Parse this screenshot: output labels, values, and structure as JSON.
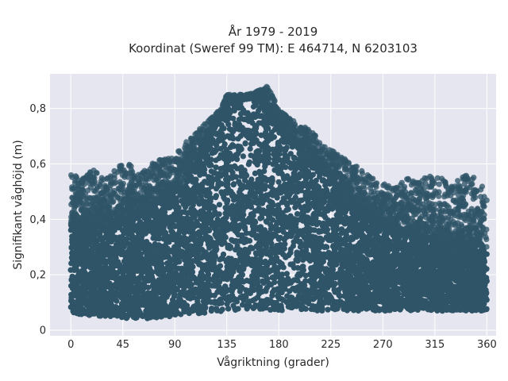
{
  "chart_data": {
    "type": "scatter",
    "title_lines": [
      "År 1979 - 2019",
      "Koordinat (Sweref 99 TM): E 464714, N 6203103"
    ],
    "xlabel": "Vågriktning (grader)",
    "ylabel": "Signifikant våghöjd (m)",
    "xlim": [
      -18,
      368
    ],
    "ylim": [
      -0.02,
      0.925
    ],
    "xticks": [
      0,
      45,
      90,
      135,
      180,
      225,
      270,
      315,
      360
    ],
    "xtick_labels": [
      "0",
      "45",
      "90",
      "135",
      "180",
      "225",
      "270",
      "315",
      "360"
    ],
    "yticks": [
      0,
      0.2,
      0.4,
      0.6,
      0.8
    ],
    "ytick_labels": [
      "0",
      "0,2",
      "0,4",
      "0,6",
      "0,8"
    ],
    "grid": true,
    "marker_color": "#2f5468",
    "plot_background": "#e5e6ef",
    "envelope": {
      "description": "Upper envelope of the observed significant wave height per direction (m)",
      "direction": [
        0,
        10,
        20,
        30,
        40,
        50,
        60,
        70,
        80,
        90,
        100,
        110,
        120,
        130,
        135,
        140,
        150,
        160,
        170,
        180,
        190,
        200,
        210,
        220,
        230,
        240,
        250,
        260,
        270,
        280,
        290,
        300,
        310,
        320,
        330,
        340,
        350,
        360
      ],
      "max_height": [
        0.56,
        0.55,
        0.58,
        0.54,
        0.59,
        0.6,
        0.56,
        0.6,
        0.62,
        0.63,
        0.68,
        0.72,
        0.76,
        0.8,
        0.85,
        0.85,
        0.85,
        0.86,
        0.88,
        0.8,
        0.76,
        0.74,
        0.71,
        0.66,
        0.64,
        0.62,
        0.58,
        0.55,
        0.53,
        0.52,
        0.55,
        0.53,
        0.56,
        0.55,
        0.52,
        0.56,
        0.55,
        0.5
      ],
      "min_height": [
        0.05,
        0.05,
        0.04,
        0.03,
        0.03,
        0.03,
        0.03,
        0.03,
        0.04,
        0.04,
        0.05,
        0.05,
        0.05,
        0.05,
        0.05,
        0.06,
        0.06,
        0.06,
        0.06,
        0.06,
        0.05,
        0.05,
        0.06,
        0.06,
        0.06,
        0.05,
        0.05,
        0.05,
        0.06,
        0.06,
        0.05,
        0.05,
        0.05,
        0.05,
        0.05,
        0.05,
        0.05,
        0.05
      ]
    },
    "bulk_band": {
      "description": "Dense core of observations (m)",
      "direction": [
        0,
        30,
        60,
        90,
        110,
        135,
        160,
        180,
        200,
        225,
        250,
        270,
        300,
        330,
        360
      ],
      "upper": [
        0.38,
        0.4,
        0.42,
        0.5,
        0.6,
        0.82,
        0.84,
        0.74,
        0.64,
        0.55,
        0.43,
        0.38,
        0.34,
        0.32,
        0.3
      ],
      "lower": [
        0.06,
        0.05,
        0.04,
        0.05,
        0.06,
        0.07,
        0.07,
        0.07,
        0.07,
        0.07,
        0.07,
        0.07,
        0.07,
        0.07,
        0.07
      ]
    }
  }
}
